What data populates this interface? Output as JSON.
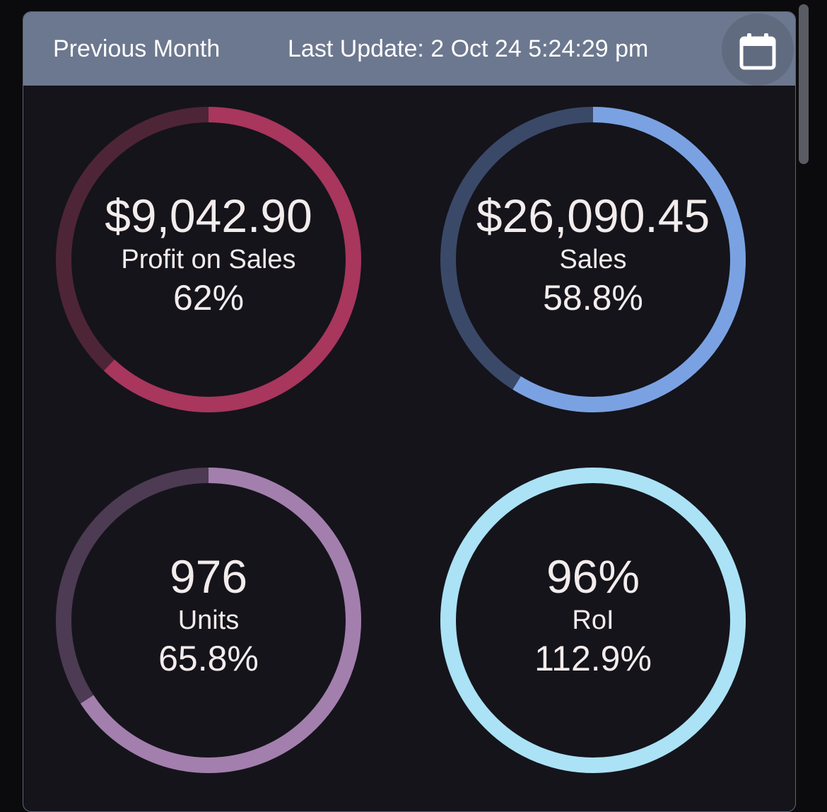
{
  "header": {
    "period_label": "Previous Month",
    "last_update": "Last Update: 2 Oct 24 5:24:29 pm",
    "calendar_icon": "calendar-icon"
  },
  "metrics": [
    {
      "value": "$9,042.90",
      "label": "Profit on Sales",
      "percent_text": "62%",
      "fill_fraction": 0.62,
      "color": "#a8365d",
      "track_color": "#4e2536"
    },
    {
      "value": "$26,090.45",
      "label": "Sales",
      "percent_text": "58.8%",
      "fill_fraction": 0.588,
      "color": "#7aa2e3",
      "track_color": "#3a4968"
    },
    {
      "value": "976",
      "label": "Units",
      "percent_text": "65.8%",
      "fill_fraction": 0.658,
      "color": "#a37fad",
      "track_color": "#4c3b52"
    },
    {
      "value": "96%",
      "label": "RoI",
      "percent_text": "112.9%",
      "fill_fraction": 1.0,
      "color": "#abe2f5",
      "track_color": "#3d5b69"
    }
  ]
}
